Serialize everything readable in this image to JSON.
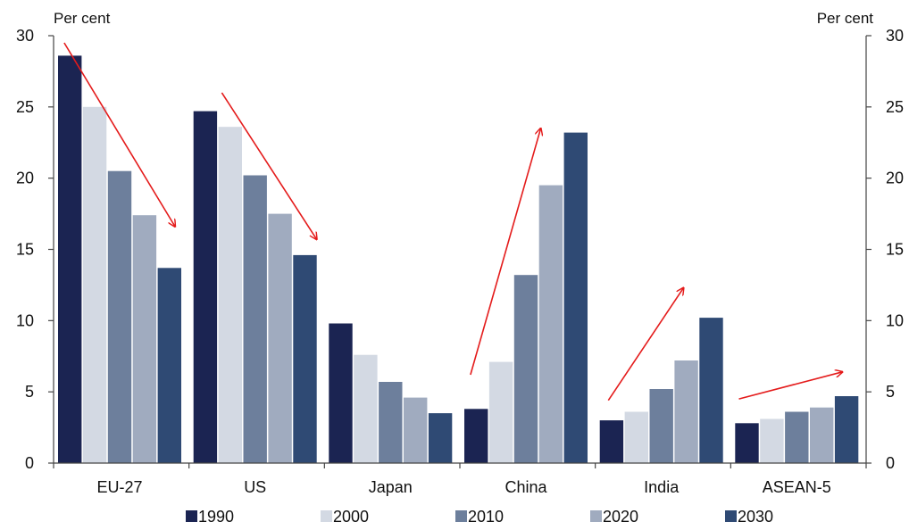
{
  "chart_data": {
    "type": "bar",
    "title": "",
    "xlabel": "",
    "ylabel_left": "Per cent",
    "ylabel_right": "Per cent",
    "categories": [
      "EU-27",
      "US",
      "Japan",
      "China",
      "India",
      "ASEAN-5"
    ],
    "series": [
      {
        "name": "1990",
        "color": "#1b2452",
        "values": [
          28.6,
          24.7,
          9.8,
          3.8,
          3.0,
          2.8
        ]
      },
      {
        "name": "2000",
        "color": "#d3d9e3",
        "values": [
          25.0,
          23.6,
          7.6,
          7.1,
          3.6,
          3.1
        ]
      },
      {
        "name": "2010",
        "color": "#6d7f9c",
        "values": [
          20.5,
          20.2,
          5.7,
          13.2,
          5.2,
          3.6
        ]
      },
      {
        "name": "2020",
        "color": "#a0abbf",
        "values": [
          17.4,
          17.5,
          4.6,
          19.5,
          7.2,
          3.9
        ]
      },
      {
        "name": "2030",
        "color": "#2f4a74",
        "values": [
          13.7,
          14.6,
          3.5,
          23.2,
          10.2,
          4.7
        ]
      }
    ],
    "ylim": [
      0,
      30
    ],
    "yticks": [
      "0",
      "5",
      "10",
      "15",
      "20",
      "25",
      "30"
    ],
    "ytick_values": [
      0,
      5,
      10,
      15,
      20,
      25,
      30
    ],
    "grid": false,
    "legend_position": "bottom",
    "annotations": [
      {
        "type": "arrow",
        "color": "#e41b1b",
        "direction": "down",
        "category": "EU-27",
        "from": {
          "x": 0.05,
          "y": 29.5
        },
        "to": {
          "x": 0.95,
          "y": 16.6
        }
      },
      {
        "type": "arrow",
        "color": "#e41b1b",
        "direction": "down",
        "category": "US",
        "from": {
          "x": 0.23,
          "y": 26.0
        },
        "to": {
          "x": 1.0,
          "y": 15.7
        }
      },
      {
        "type": "arrow",
        "color": "#e41b1b",
        "direction": "up",
        "category": "China",
        "from": {
          "x": 0.05,
          "y": 6.2
        },
        "to": {
          "x": 0.62,
          "y": 23.5
        }
      },
      {
        "type": "arrow",
        "color": "#e41b1b",
        "direction": "up",
        "category": "India",
        "from": {
          "x": 0.07,
          "y": 4.4
        },
        "to": {
          "x": 0.68,
          "y": 12.3
        }
      },
      {
        "type": "arrow",
        "color": "#e41b1b",
        "direction": "up",
        "category": "ASEAN-5",
        "from": {
          "x": 0.03,
          "y": 4.5
        },
        "to": {
          "x": 0.87,
          "y": 6.4
        }
      }
    ]
  }
}
